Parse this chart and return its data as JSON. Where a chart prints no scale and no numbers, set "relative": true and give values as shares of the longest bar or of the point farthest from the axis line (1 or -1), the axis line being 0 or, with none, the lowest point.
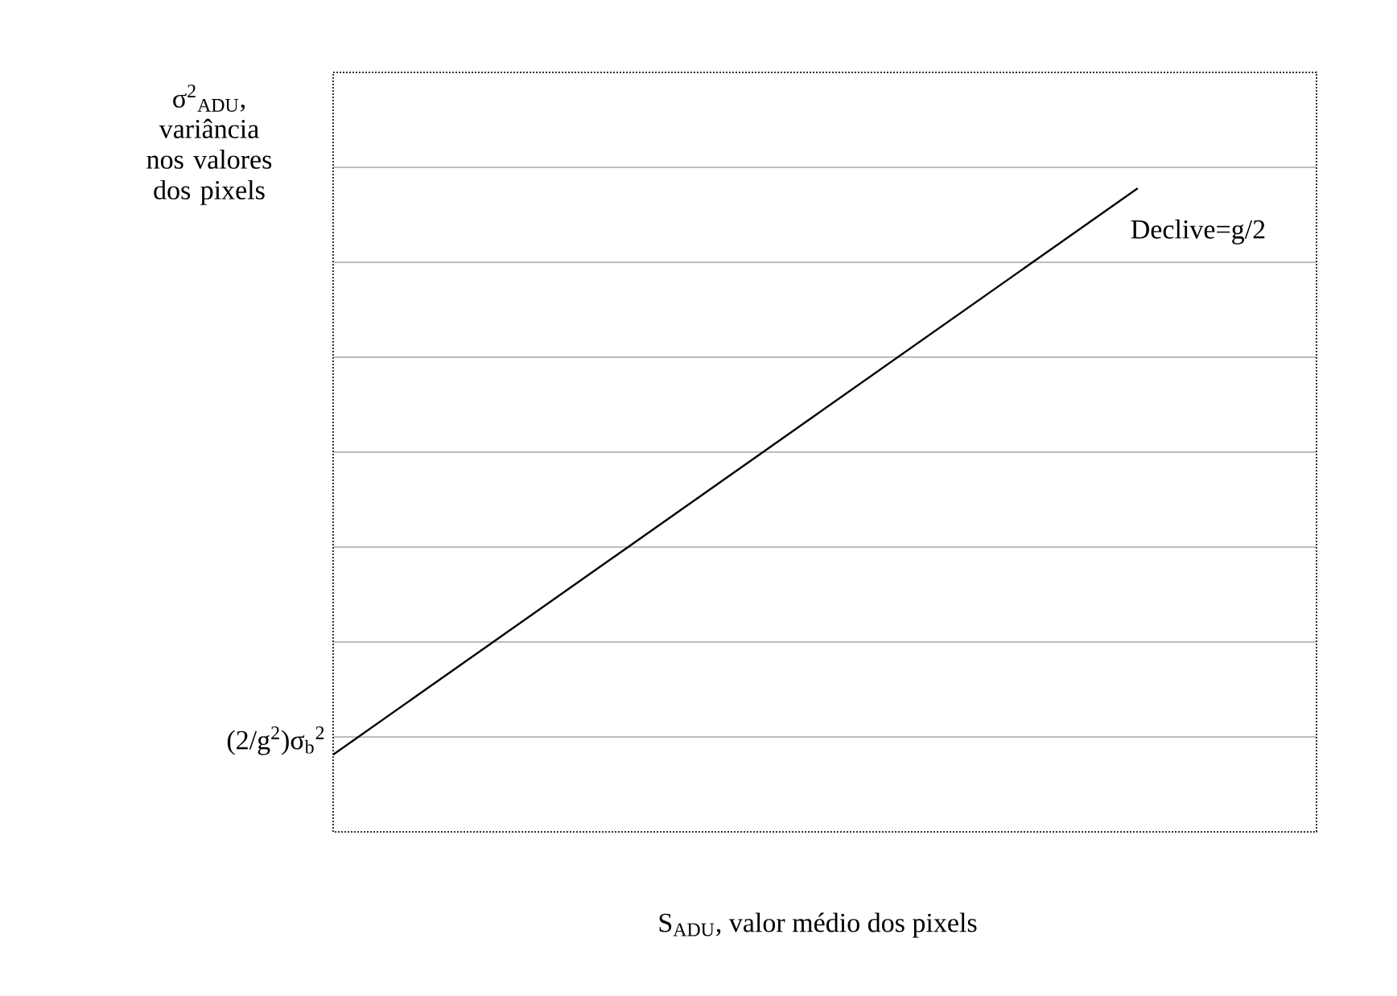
{
  "chart_data": {
    "type": "line",
    "relative": true,
    "ylabel": "σ$^{2}$$_{ADU}$, variância nos valores dos pixels",
    "xlabel": "S$_{ADU}$, valor médio dos pixels",
    "categories": [
      null,
      null,
      null,
      null,
      null,
      null,
      null,
      null,
      null,
      null,
      null,
      null
    ],
    "series": [
      {
        "color": "#000000",
        "values": [
          0.12,
          null,
          null,
          null,
          null,
          null,
          null,
          null,
          null,
          1,
          null,
          null
        ]
      }
    ],
    "annotations": [
      "(2/g$^{2}$)σ$_{b}$$^{2}$",
      "Declive=g/2"
    ],
    "grid": "y"
  }
}
